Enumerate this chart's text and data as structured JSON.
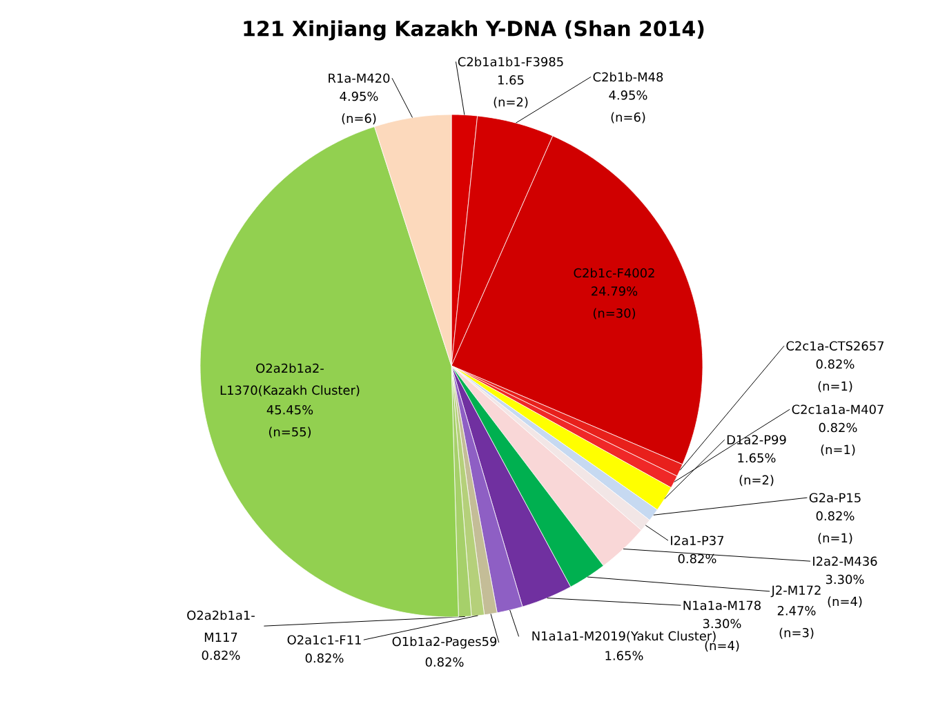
{
  "chart_data": {
    "type": "pie",
    "title": "121 Xinjiang Kazakh Y-DNA (Shan 2014)",
    "categories": [
      "C2b1a1b1-F3985",
      "C2b1b-M48",
      "C2b1c-F4002",
      "C2c1a-CTS2657",
      "C2c1a1a-M407",
      "D1a2-P99",
      "G2a-P15",
      "I2a1-P37",
      "I2a2-M436",
      "J2-M172",
      "N1a1a-M178",
      "N1a1a1-M2019(Yakut Cluster)",
      "O1b1a2-Pages59",
      "O2a1c1-F11",
      "O2a2b1a1-M117",
      "O2a2b1a2-L1370(Kazakh Cluster)",
      "R1a-M420"
    ],
    "values": [
      1.65,
      4.95,
      24.79,
      0.82,
      0.82,
      1.65,
      0.82,
      0.82,
      3.3,
      2.47,
      3.3,
      1.65,
      0.82,
      0.82,
      0.82,
      45.45,
      4.95
    ],
    "value_labels": [
      "1.65 (n=2)",
      "4.95% (n=6)",
      "24.79% (n=30)",
      "0.82% (n=1)",
      "0.82% (n=1)",
      "1.65% (n=2)",
      "0.82% (n=1)",
      "0.82%",
      "3.30% (n=4)",
      "2.47% (n=3)",
      "3.30% (n=4)",
      "1.65%",
      "0.82%",
      "0.82%",
      "0.82%",
      "45.45% (n=55)",
      "4.95% (n=6)"
    ],
    "colors": [
      "#d90000",
      "#d40000",
      "#d00000",
      "#e8201c",
      "#f02828",
      "#ffff00",
      "#c6d9f1",
      "#f2e6e6",
      "#f9d7d7",
      "#00b050",
      "#7030a0",
      "#8e5fc4",
      "#c4bd97",
      "#b5d07a",
      "#a6d06a",
      "#92d050",
      "#fcd9bc"
    ],
    "legend": false
  }
}
